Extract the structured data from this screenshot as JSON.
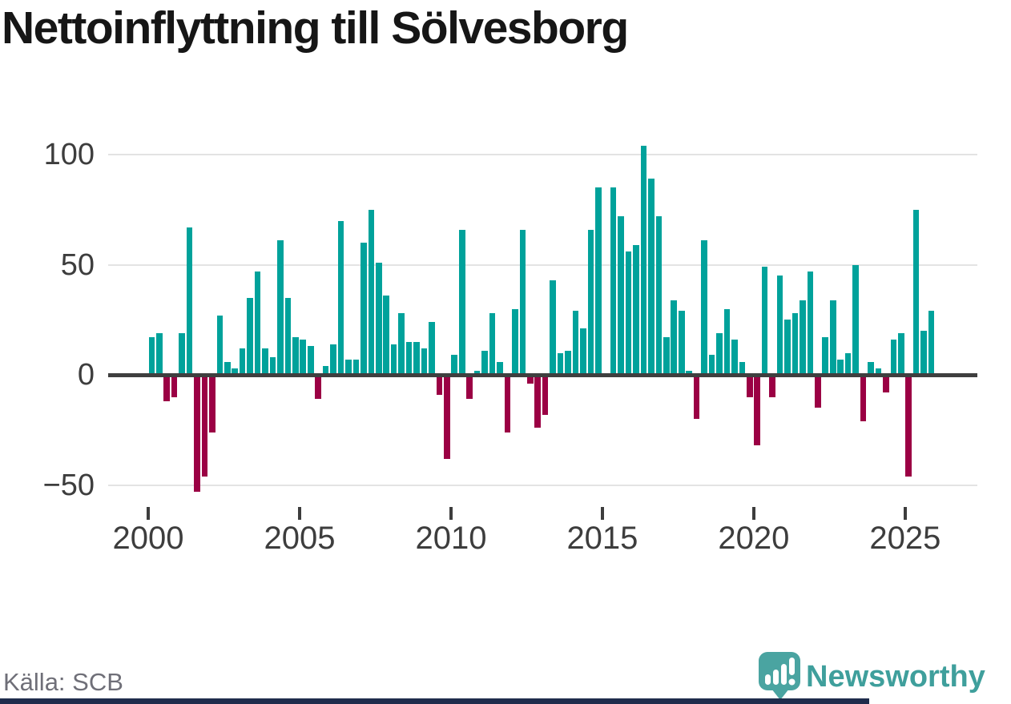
{
  "title": "Nettoinflyttning till Sölvesborg",
  "source": "Källa: SCB",
  "brand": {
    "name": "Newsworthy"
  },
  "colors": {
    "positive": "#00a29b",
    "negative": "#9b0044",
    "grid": "#e3e3e3",
    "zero_line": "#3f3f3f",
    "axis_text": "#3d3d3d",
    "title_text": "#161616",
    "source_text": "#6f6f78",
    "brand_teal": "#3f9f9c",
    "logo_fill": "#4aa4a1",
    "footer_bar": "#1f2c4c"
  },
  "y_axis": {
    "ticks": [
      {
        "label": "100",
        "value": 100
      },
      {
        "label": "50",
        "value": 50
      },
      {
        "label": "0",
        "value": 0
      },
      {
        "label": "−50",
        "value": -50
      }
    ]
  },
  "x_axis": {
    "ticks": [
      {
        "label": "2000"
      },
      {
        "label": "2005"
      },
      {
        "label": "2010"
      },
      {
        "label": "2015"
      },
      {
        "label": "2020"
      },
      {
        "label": "2025"
      }
    ]
  },
  "chart_data": {
    "type": "bar",
    "title": "Nettoinflyttning till Sölvesborg",
    "xlabel": "",
    "ylabel": "",
    "x_unit": "quarter",
    "ylim": [
      -60,
      110
    ],
    "grid": true,
    "categories": [
      "2000 Q1",
      "2000 Q2",
      "2000 Q3",
      "2000 Q4",
      "2001 Q1",
      "2001 Q2",
      "2001 Q3",
      "2001 Q4",
      "2002 Q1",
      "2002 Q2",
      "2002 Q3",
      "2002 Q4",
      "2003 Q1",
      "2003 Q2",
      "2003 Q3",
      "2003 Q4",
      "2004 Q1",
      "2004 Q2",
      "2004 Q3",
      "2004 Q4",
      "2005 Q1",
      "2005 Q2",
      "2005 Q3",
      "2005 Q4",
      "2006 Q1",
      "2006 Q2",
      "2006 Q3",
      "2006 Q4",
      "2007 Q1",
      "2007 Q2",
      "2007 Q3",
      "2007 Q4",
      "2008 Q1",
      "2008 Q2",
      "2008 Q3",
      "2008 Q4",
      "2009 Q1",
      "2009 Q2",
      "2009 Q3",
      "2009 Q4",
      "2010 Q1",
      "2010 Q2",
      "2010 Q3",
      "2010 Q4",
      "2011 Q1",
      "2011 Q2",
      "2011 Q3",
      "2011 Q4",
      "2012 Q1",
      "2012 Q2",
      "2012 Q3",
      "2012 Q4",
      "2013 Q1",
      "2013 Q2",
      "2013 Q3",
      "2013 Q4",
      "2014 Q1",
      "2014 Q2",
      "2014 Q3",
      "2014 Q4",
      "2015 Q1",
      "2015 Q2",
      "2015 Q3",
      "2015 Q4",
      "2016 Q1",
      "2016 Q2",
      "2016 Q3",
      "2016 Q4",
      "2017 Q1",
      "2017 Q2",
      "2017 Q3",
      "2017 Q4",
      "2018 Q1",
      "2018 Q2",
      "2018 Q3",
      "2018 Q4",
      "2019 Q1",
      "2019 Q2",
      "2019 Q3",
      "2019 Q4",
      "2020 Q1",
      "2020 Q2",
      "2020 Q3",
      "2020 Q4",
      "2021 Q1",
      "2021 Q2",
      "2021 Q3",
      "2021 Q4",
      "2022 Q1",
      "2022 Q2",
      "2022 Q3",
      "2022 Q4",
      "2023 Q1",
      "2023 Q2",
      "2023 Q3",
      "2023 Q4",
      "2024 Q1",
      "2024 Q2",
      "2024 Q3",
      "2024 Q4",
      "2025 Q1",
      "2025 Q2",
      "2025 Q3",
      "2025 Q4"
    ],
    "values": [
      17,
      19,
      -12,
      -10,
      19,
      67,
      -53,
      -46,
      -26,
      27,
      6,
      3,
      12,
      35,
      47,
      12,
      8,
      61,
      35,
      17,
      16,
      13,
      -11,
      4,
      14,
      70,
      7,
      7,
      60,
      75,
      51,
      36,
      14,
      28,
      15,
      15,
      12,
      24,
      -9,
      -38,
      9,
      66,
      -11,
      2,
      11,
      28,
      6,
      -26,
      30,
      66,
      -4,
      -24,
      -18,
      43,
      10,
      11,
      29,
      21,
      66,
      85,
      0,
      85,
      72,
      56,
      59,
      104,
      89,
      72,
      17,
      34,
      29,
      2,
      -20,
      61,
      9,
      19,
      30,
      16,
      6,
      -10,
      -32,
      49,
      -10,
      45,
      25,
      28,
      34,
      47,
      -15,
      17,
      34,
      7,
      10,
      50,
      -21,
      6,
      3,
      -8,
      16,
      19,
      -46,
      75,
      20,
      29
    ],
    "positive_color": "#00a29b",
    "negative_color": "#9b0044",
    "legend": null
  }
}
